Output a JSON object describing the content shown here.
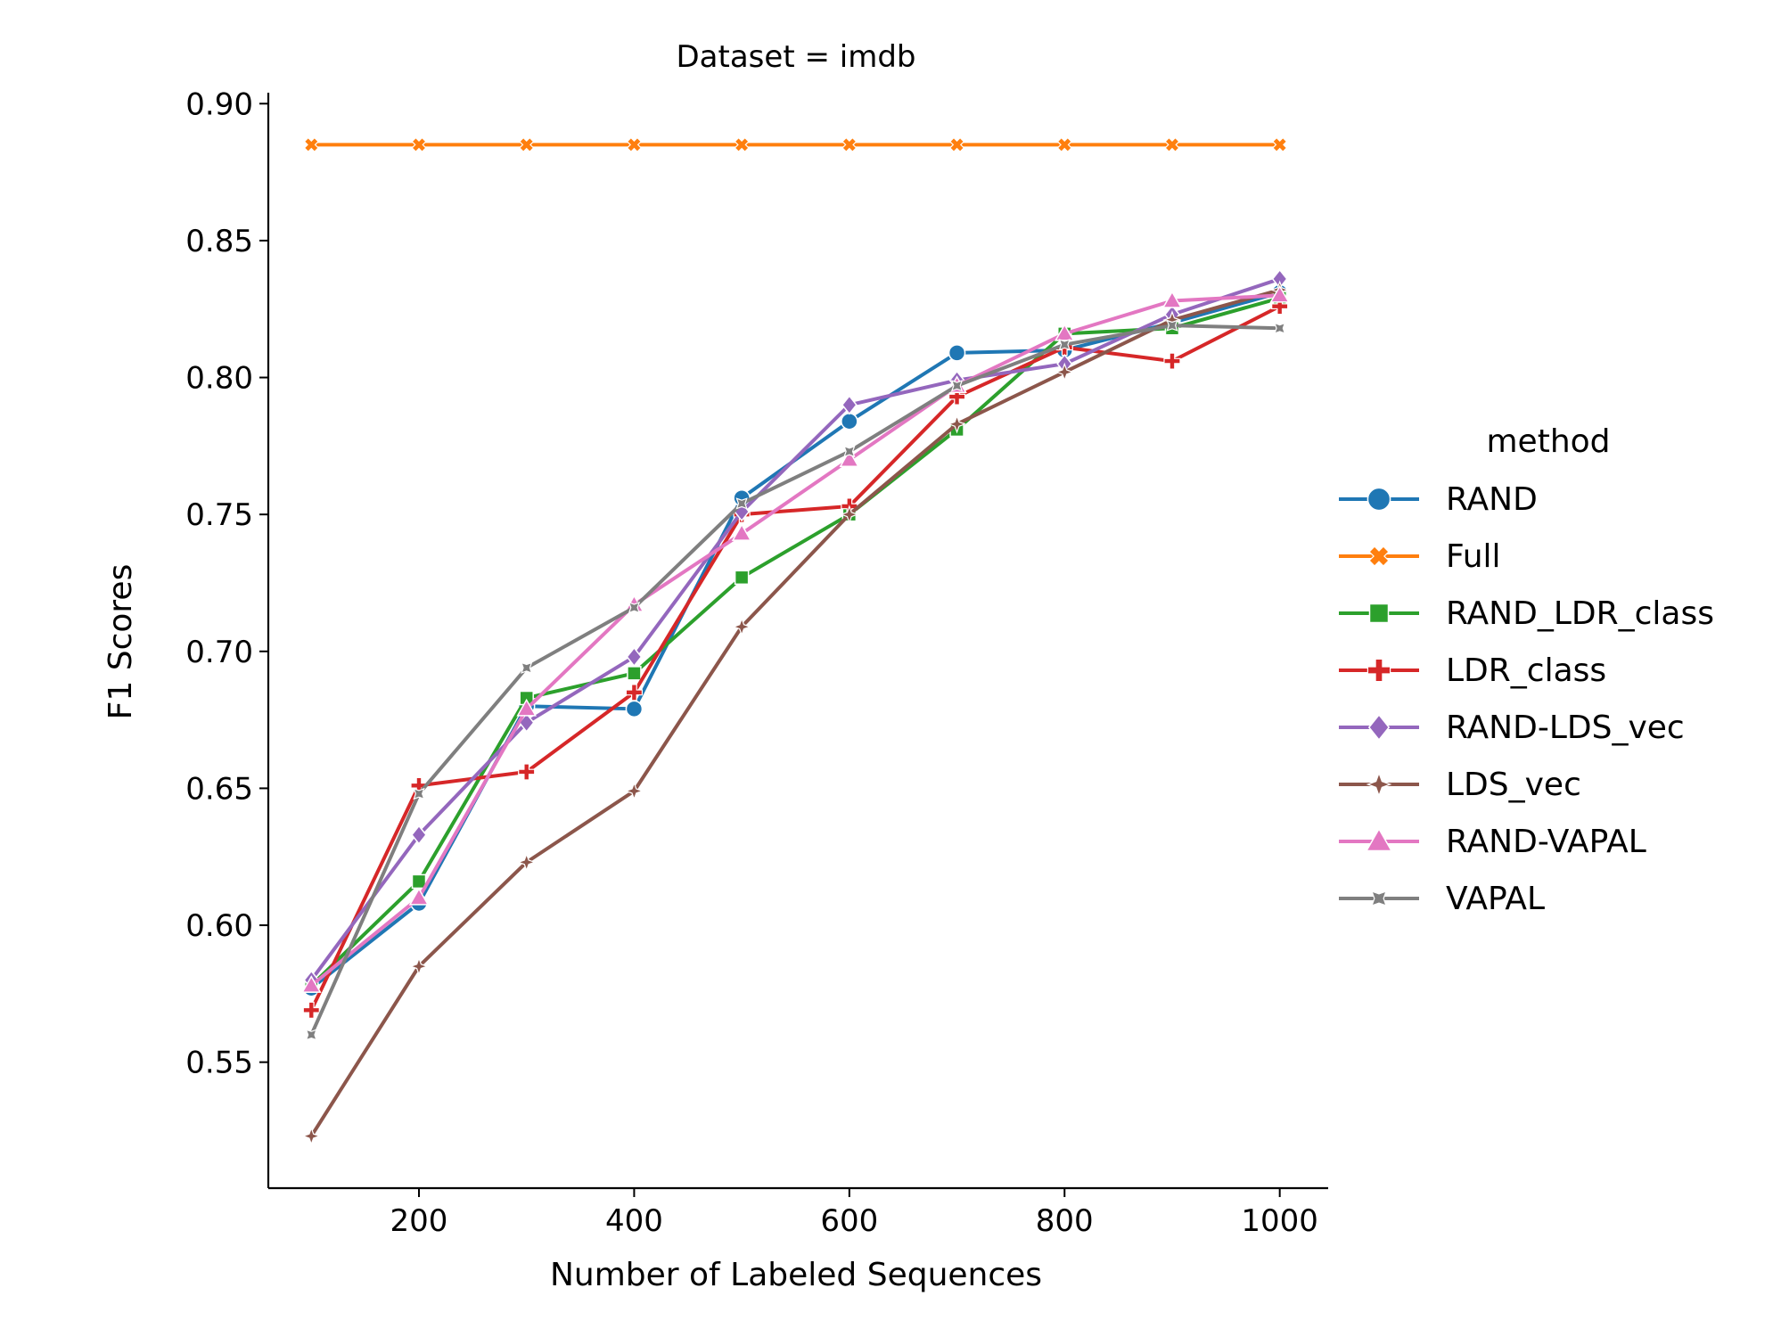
{
  "chart_data": {
    "type": "line",
    "title": "Dataset = imdb",
    "xlabel": "Number of Labeled Sequences",
    "ylabel": "F1 Scores",
    "xlim": [
      60,
      1045
    ],
    "ylim": [
      0.504,
      0.904
    ],
    "xticks": [
      200,
      400,
      600,
      800,
      1000
    ],
    "xtick_labels": [
      "200",
      "400",
      "600",
      "800",
      "1000"
    ],
    "yticks": [
      0.55,
      0.6,
      0.65,
      0.7,
      0.75,
      0.8,
      0.85,
      0.9
    ],
    "ytick_labels": [
      "0.55",
      "0.60",
      "0.65",
      "0.70",
      "0.75",
      "0.80",
      "0.85",
      "0.90"
    ],
    "grid": false,
    "legend": {
      "title": "method",
      "placement": "right"
    },
    "x": [
      100,
      200,
      300,
      400,
      500,
      600,
      700,
      800,
      900,
      1000
    ],
    "series": [
      {
        "name": "RAND",
        "color": "#1f77b4",
        "marker": "circle",
        "values": [
          0.577,
          0.608,
          0.68,
          0.679,
          0.756,
          0.784,
          0.809,
          0.81,
          0.82,
          0.831
        ]
      },
      {
        "name": "Full",
        "color": "#ff7f0e",
        "marker": "x",
        "values": [
          0.885,
          0.885,
          0.885,
          0.885,
          0.885,
          0.885,
          0.885,
          0.885,
          0.885,
          0.885
        ]
      },
      {
        "name": "RAND_LDR_class",
        "color": "#2ca02c",
        "marker": "square",
        "values": [
          0.578,
          0.616,
          0.683,
          0.692,
          0.727,
          0.75,
          0.781,
          0.816,
          0.818,
          0.829
        ]
      },
      {
        "name": "LDR_class",
        "color": "#d62728",
        "marker": "plus",
        "values": [
          0.569,
          0.651,
          0.656,
          0.685,
          0.75,
          0.753,
          0.793,
          0.811,
          0.806,
          0.826
        ]
      },
      {
        "name": "RAND-LDS_vec",
        "color": "#9467bd",
        "marker": "diamond",
        "values": [
          0.58,
          0.633,
          0.674,
          0.698,
          0.751,
          0.79,
          0.799,
          0.805,
          0.823,
          0.836
        ]
      },
      {
        "name": "LDS_vec",
        "color": "#8c564b",
        "marker": "star4",
        "values": [
          0.523,
          0.585,
          0.623,
          0.649,
          0.709,
          0.75,
          0.783,
          0.802,
          0.821,
          0.832
        ]
      },
      {
        "name": "RAND-VAPAL",
        "color": "#e377c2",
        "marker": "triangle",
        "values": [
          0.578,
          0.61,
          0.679,
          0.717,
          0.743,
          0.77,
          0.797,
          0.816,
          0.828,
          0.83
        ]
      },
      {
        "name": "VAPAL",
        "color": "#7f7f7f",
        "marker": "star",
        "values": [
          0.56,
          0.648,
          0.694,
          0.716,
          0.754,
          0.773,
          0.797,
          0.812,
          0.819,
          0.818
        ]
      }
    ]
  }
}
